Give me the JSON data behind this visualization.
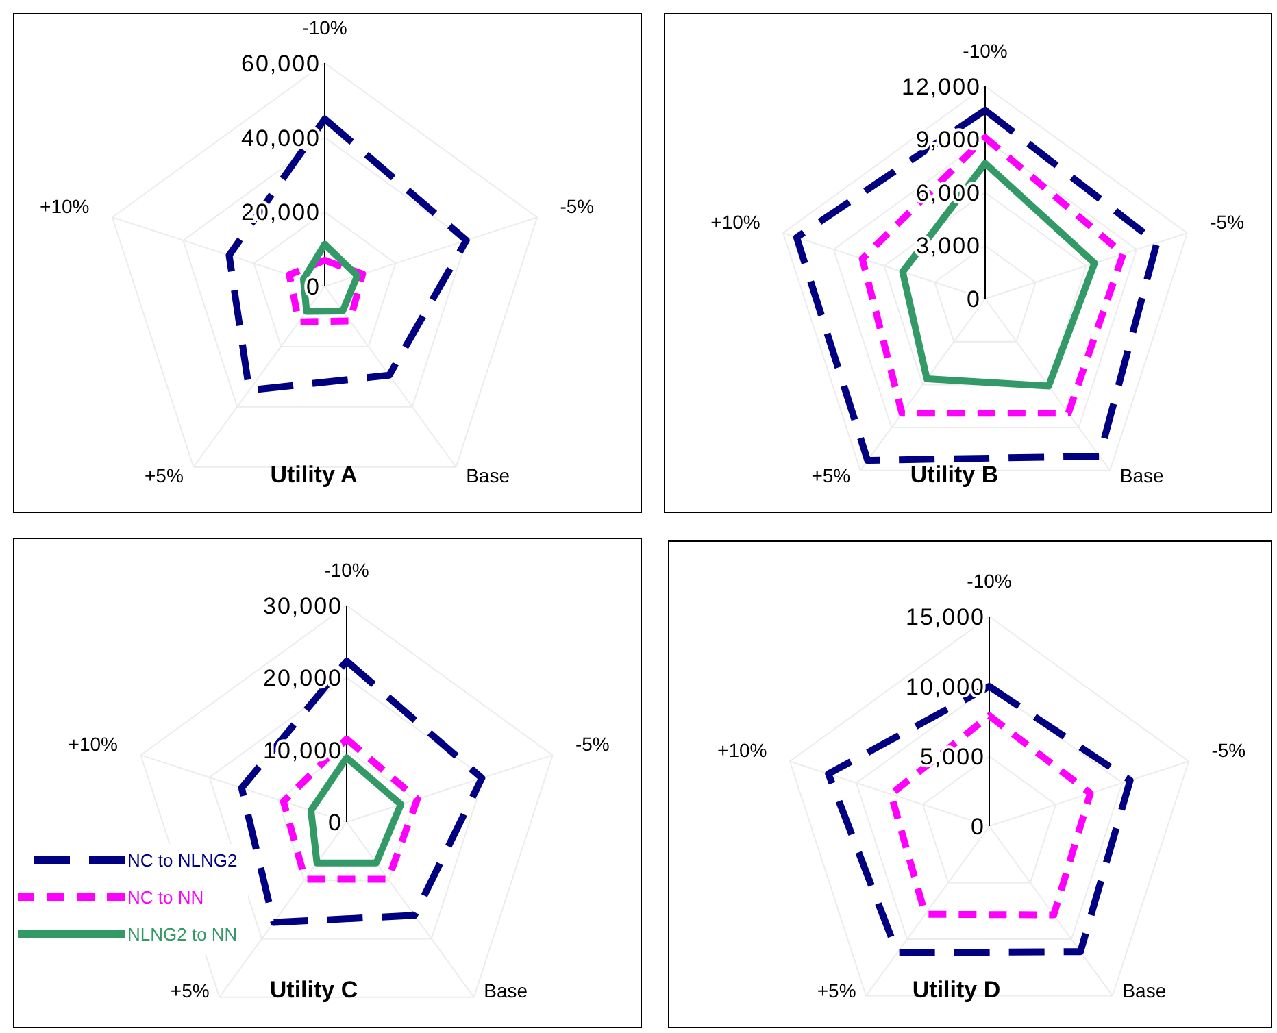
{
  "chart_data": [
    {
      "type": "radar",
      "title": "Utility  A",
      "categories": [
        "-10%",
        "-5%",
        "Base",
        "+5%",
        "+10%"
      ],
      "ylim": [
        0,
        60000
      ],
      "yticks": [
        {
          "value": 0,
          "label": "0"
        },
        {
          "value": 20000,
          "label": "20,000"
        },
        {
          "value": 40000,
          "label": "40,000"
        },
        {
          "value": 60000,
          "label": "60,000"
        }
      ],
      "grid": true,
      "series": [
        {
          "color": "#000080",
          "line_style": "dashed",
          "values": [
            45000,
            40000,
            29500,
            34500,
            27000
          ]
        },
        {
          "color": "#ff00ff",
          "line_style": "dashed",
          "values": [
            7000,
            10700,
            11500,
            11800,
            10000
          ]
        },
        {
          "color": "#339966",
          "line_style": "solid",
          "values": [
            11300,
            9200,
            8200,
            8300,
            6000
          ]
        }
      ]
    },
    {
      "type": "radar",
      "title": "Utility  B",
      "categories": [
        "-10%",
        "-5%",
        "Base",
        "+5%",
        "+10%"
      ],
      "ylim": [
        0,
        12000
      ],
      "yticks": [
        {
          "value": 0,
          "label": "0"
        },
        {
          "value": 3000,
          "label": "3,000"
        },
        {
          "value": 6000,
          "label": "6,000"
        },
        {
          "value": 9000,
          "label": "9,000"
        },
        {
          "value": 12000,
          "label": "12,000"
        }
      ],
      "grid": true,
      "series": [
        {
          "color": "#000080",
          "line_style": "dashed",
          "values": [
            10650,
            10200,
            11000,
            11300,
            11200
          ]
        },
        {
          "color": "#ff00ff",
          "line_style": "dashed",
          "values": [
            9100,
            8200,
            8000,
            8000,
            7300
          ]
        },
        {
          "color": "#339966",
          "line_style": "solid",
          "values": [
            7650,
            6500,
            6100,
            5600,
            4900
          ]
        }
      ]
    },
    {
      "type": "radar",
      "title": "Utility  C",
      "categories": [
        "-10%",
        "-5%",
        "Base",
        "+5%",
        "+10%"
      ],
      "ylim": [
        0,
        30000
      ],
      "yticks": [
        {
          "value": 0,
          "label": "0"
        },
        {
          "value": 10000,
          "label": "10,000"
        },
        {
          "value": 20000,
          "label": "20,000"
        },
        {
          "value": 30000,
          "label": "30,000"
        }
      ],
      "grid": true,
      "legend": "bottom left",
      "series": [
        {
          "name": "NC to NLNG2",
          "color": "#000080",
          "line_style": "dashed",
          "values": [
            22300,
            19700,
            16000,
            17200,
            15300
          ]
        },
        {
          "name": "NC to NN",
          "color": "#ff00ff",
          "line_style": "dashed",
          "values": [
            11500,
            10300,
            9800,
            9800,
            9200
          ]
        },
        {
          "name": "NLNG2 to NN",
          "color": "#339966",
          "line_style": "solid",
          "values": [
            8900,
            7900,
            7000,
            7000,
            5200
          ]
        }
      ]
    },
    {
      "type": "radar",
      "title": "Utility  D",
      "categories": [
        "-10%",
        "-5%",
        "Base",
        "+5%",
        "+10%"
      ],
      "ylim": [
        0,
        15000
      ],
      "yticks": [
        {
          "value": 0,
          "label": "0"
        },
        {
          "value": 5000,
          "label": "5,000"
        },
        {
          "value": 10000,
          "label": "10,000"
        },
        {
          "value": 15000,
          "label": "15,000"
        }
      ],
      "grid": true,
      "series": [
        {
          "color": "#000080",
          "line_style": "dashed",
          "values": [
            10000,
            10600,
            11100,
            11200,
            12100
          ]
        },
        {
          "color": "#ff00ff",
          "line_style": "dashed",
          "values": [
            7900,
            7600,
            7850,
            7800,
            7400
          ]
        }
      ]
    }
  ]
}
